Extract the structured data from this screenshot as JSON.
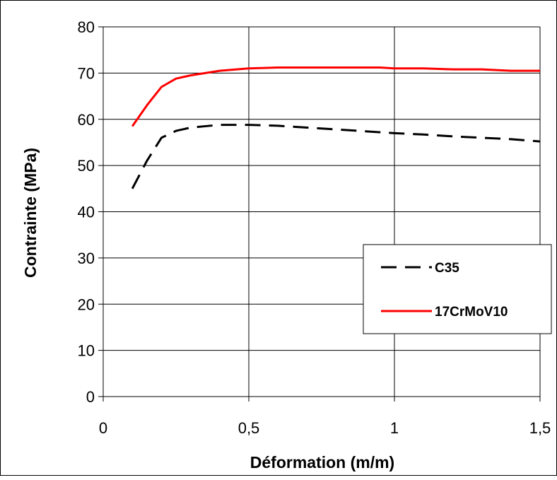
{
  "chart_data": {
    "type": "line",
    "title": "",
    "xlabel": "Déformation (m/m)",
    "ylabel": "Contrainte (MPa)",
    "xlim": [
      0,
      1.5
    ],
    "ylim": [
      0,
      80
    ],
    "x_ticks": [
      0,
      0.5,
      1,
      1.5
    ],
    "x_tick_labels": [
      "0",
      "0,5",
      "1",
      "1,5"
    ],
    "y_ticks": [
      0,
      10,
      20,
      30,
      40,
      50,
      60,
      70,
      80
    ],
    "y_tick_labels": [
      "0",
      "10",
      "20",
      "30",
      "40",
      "50",
      "60",
      "70",
      "80"
    ],
    "grid": true,
    "legend_position": "right",
    "series": [
      {
        "name": "C35",
        "color": "#000000",
        "style": "dashed",
        "x": [
          0.1,
          0.15,
          0.2,
          0.25,
          0.3,
          0.4,
          0.5,
          0.6,
          0.7,
          0.8,
          0.9,
          1.0,
          1.1,
          1.2,
          1.3,
          1.4,
          1.5
        ],
        "y": [
          45,
          51,
          56,
          57.5,
          58.2,
          58.8,
          58.8,
          58.6,
          58.2,
          57.8,
          57.4,
          57,
          56.7,
          56.3,
          56,
          55.7,
          55.2
        ]
      },
      {
        "name": "17CrMoV10",
        "color": "#ff0000",
        "style": "solid",
        "x": [
          0.1,
          0.15,
          0.2,
          0.25,
          0.3,
          0.4,
          0.5,
          0.6,
          0.7,
          0.8,
          0.9,
          0.95,
          1.0,
          1.1,
          1.2,
          1.3,
          1.4,
          1.5
        ],
        "y": [
          58.5,
          63,
          67,
          68.8,
          69.5,
          70.5,
          71,
          71.2,
          71.2,
          71.2,
          71.2,
          71.2,
          71,
          71,
          70.8,
          70.8,
          70.5,
          70.5
        ]
      }
    ]
  }
}
